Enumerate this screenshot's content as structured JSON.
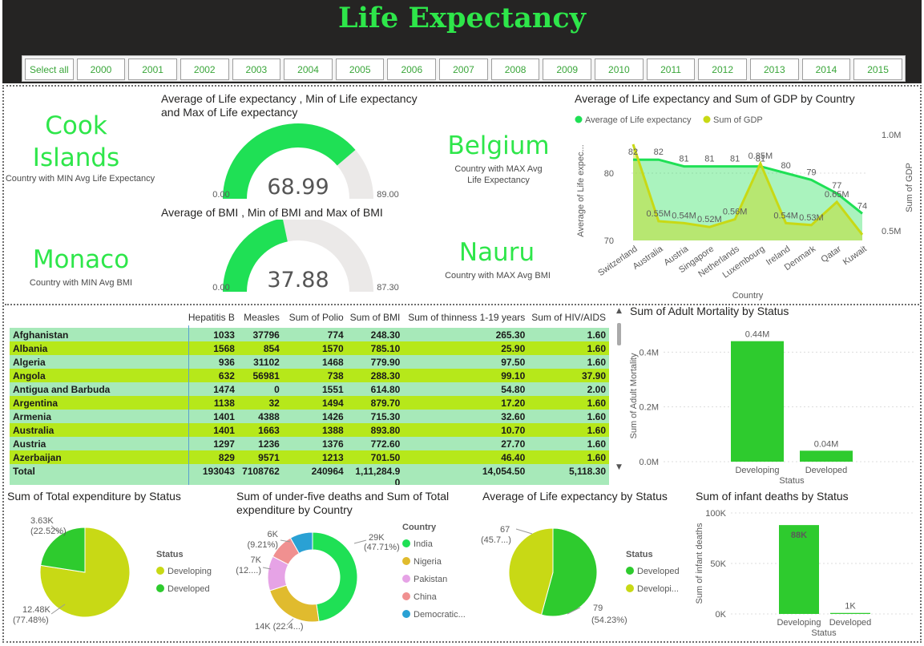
{
  "header": {
    "title": "Life  Expectancy",
    "slicer": [
      "Select all",
      "2000",
      "2001",
      "2002",
      "2003",
      "2004",
      "2005",
      "2006",
      "2007",
      "2008",
      "2009",
      "2010",
      "2011",
      "2012",
      "2013",
      "2014",
      "2015"
    ]
  },
  "cards": {
    "min_life": {
      "value": "Cook Islands",
      "line1": "Cook",
      "line2": "Islands",
      "label": "Country with MIN Avg Life Expectancy"
    },
    "max_life": {
      "value": "Belgium",
      "label": "Country with MAX Avg Life Expectancy"
    },
    "min_bmi": {
      "value": "Monaco",
      "label": "Country with MIN Avg BMI"
    },
    "max_bmi": {
      "value": "Nauru",
      "label": "Country with MAX Avg BMI"
    }
  },
  "colors": {
    "green": "#1fe055",
    "bright_green": "#2ecb2e",
    "lime": "#c8d915",
    "gray": "#ebe9e8",
    "row_a": "#a7e9b9",
    "row_b": "#b6e81a",
    "pink": "#e6a3e6",
    "salmon": "#f09090",
    "blue": "#2aa1d4",
    "gold": "#e0bb2e",
    "india": "#1fe055"
  },
  "gauges": {
    "life": {
      "title1": "Average of Life expectancy , Min of Life expectancy",
      "title2": "and Max of Life expectancy",
      "value": "68.99",
      "min": "0.00",
      "max": "89.00",
      "val": 68.99,
      "lo": 0,
      "hi": 89
    },
    "bmi": {
      "title": "Average of BMI , Min of BMI and Max of BMI",
      "value": "37.88",
      "min": "0.00",
      "max": "87.30",
      "val": 37.88,
      "lo": 0,
      "hi": 87.3
    }
  },
  "chart_data": [
    {
      "type": "line",
      "id": "life_gdp",
      "title": "Average of Life expectancy and Sum of GDP by Country",
      "xlabel": "Country",
      "ylabel": "Average of Life expec...",
      "y2label": "Sum of GDP",
      "legend_position": "top-left",
      "categories": [
        "Switzerland",
        "Australia",
        "Austria",
        "Singapore",
        "Netherlands",
        "Luxembourg",
        "Ireland",
        "Denmark",
        "Qatar",
        "Kuwait"
      ],
      "series": [
        {
          "name": "Average of Life expectancy",
          "values": [
            82,
            82,
            81,
            81,
            81,
            81,
            80,
            79,
            77,
            74
          ],
          "labels": [
            "82",
            "82",
            "81",
            "81",
            "81",
            "81",
            "80",
            "79",
            "77",
            "74"
          ]
        },
        {
          "name": "Sum of GDP",
          "values": [
            0.95,
            0.55,
            0.54,
            0.52,
            0.56,
            0.85,
            0.54,
            0.53,
            0.65,
            0.48
          ],
          "labels": [
            "",
            "0.55M",
            "0.54M",
            "0.52M",
            "0.56M",
            "0.85M",
            "0.54M",
            "0.53M",
            "0.65M",
            ""
          ]
        }
      ],
      "y_ticks": [
        "70",
        "80"
      ],
      "y_range": [
        70,
        85
      ],
      "y2_ticks": [
        "0.5M",
        "1.0M"
      ],
      "y2_range": [
        0.45,
        1.0
      ]
    },
    {
      "type": "bar",
      "id": "adult_mortality",
      "title": "Sum of Adult Mortality by Status",
      "xlabel": "Status",
      "ylabel": "Sum of Adult Mortality",
      "categories": [
        "Developing",
        "Developed"
      ],
      "values": [
        0.44,
        0.04
      ],
      "labels": [
        "0.44M",
        "0.04M"
      ],
      "y_ticks": [
        "0.0M",
        "0.2M",
        "0.4M"
      ],
      "y_range": [
        0,
        0.48
      ]
    },
    {
      "type": "pie",
      "id": "total_expenditure",
      "title": "Sum of Total expenditure by Status",
      "legend_title": "Status",
      "categories": [
        "Developing",
        "Developed"
      ],
      "values": [
        12.48,
        3.63
      ],
      "labels": [
        "12.48K",
        "3.63K"
      ],
      "pct": [
        "(77.48%)",
        "(22.52%)"
      ]
    },
    {
      "type": "pie",
      "id": "under_five",
      "title1": "Sum of under-five deaths and Sum of Total",
      "title2": "expenditure by Country",
      "legend_title": "Country",
      "categories": [
        "India",
        "Nigeria",
        "Pakistan",
        "China",
        "Democratic..."
      ],
      "values": [
        47.71,
        22.4,
        12.5,
        9.21,
        8.18
      ],
      "labels": [
        "29K",
        "14K",
        "7K",
        "6K",
        ""
      ],
      "pct": [
        "(47.71%)",
        "(22.4...)",
        "(12....)",
        "(9.21%)",
        ""
      ]
    },
    {
      "type": "pie",
      "id": "life_status",
      "title": "Average of Life expectancy by Status",
      "legend_title": "Status",
      "categories": [
        "Developed",
        "Developi..."
      ],
      "values": [
        54.23,
        45.77
      ],
      "labels": [
        "79",
        "67"
      ],
      "pct": [
        "(54.23%)",
        "(45.7...)"
      ]
    },
    {
      "type": "bar",
      "id": "infant_deaths",
      "title": "Sum of infant deaths by Status",
      "xlabel": "Status",
      "ylabel": "Sum of infant deaths",
      "categories": [
        "Developing",
        "Developed"
      ],
      "values": [
        88,
        1
      ],
      "labels": [
        "88K",
        "1K"
      ],
      "y_ticks": [
        "0K",
        "50K",
        "100K"
      ],
      "y_range": [
        0,
        100
      ]
    },
    {
      "type": "table",
      "id": "matrix",
      "columns": [
        "",
        "Hepatitis B",
        "Measles",
        "Sum of Polio",
        "Sum of BMI",
        "Sum of thinness 1-19 years",
        "Sum of HIV/AIDS"
      ],
      "rows": [
        [
          "Afghanistan",
          "1033",
          "37796",
          "774",
          "248.30",
          "265.30",
          "1.60"
        ],
        [
          "Albania",
          "1568",
          "854",
          "1570",
          "785.10",
          "25.90",
          "1.60"
        ],
        [
          "Algeria",
          "936",
          "31102",
          "1468",
          "779.90",
          "97.50",
          "1.60"
        ],
        [
          "Angola",
          "632",
          "56981",
          "738",
          "288.30",
          "99.10",
          "37.90"
        ],
        [
          "Antigua and Barbuda",
          "1474",
          "0",
          "1551",
          "614.80",
          "54.80",
          "2.00"
        ],
        [
          "Argentina",
          "1138",
          "32",
          "1494",
          "879.70",
          "17.20",
          "1.60"
        ],
        [
          "Armenia",
          "1401",
          "4388",
          "1426",
          "715.30",
          "32.60",
          "1.60"
        ],
        [
          "Australia",
          "1401",
          "1663",
          "1388",
          "893.80",
          "10.70",
          "1.60"
        ],
        [
          "Austria",
          "1297",
          "1236",
          "1376",
          "772.60",
          "27.70",
          "1.60"
        ],
        [
          "Azerbaijan",
          "829",
          "9571",
          "1213",
          "701.50",
          "46.40",
          "1.60"
        ]
      ],
      "total": [
        "Total",
        "193043",
        "7108762",
        "240964",
        "1,11,284.9",
        "14,054.50",
        "5,118.30"
      ],
      "total_bmi_wrap": "0"
    }
  ]
}
